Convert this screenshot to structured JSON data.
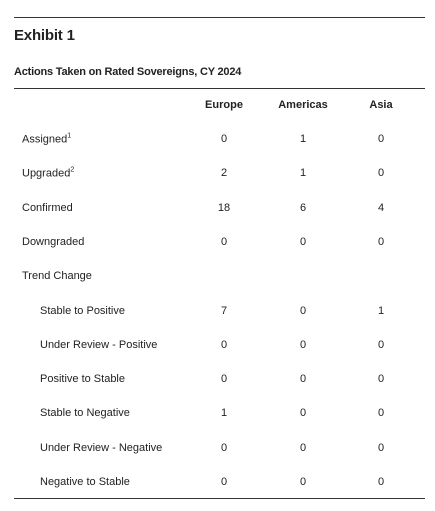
{
  "header": {
    "title": "Exhibit 1",
    "subtitle": "Actions Taken on Rated Sovereigns, CY 2024"
  },
  "table": {
    "columns": [
      "Europe",
      "Americas",
      "Asia"
    ],
    "rows": [
      {
        "label": "Assigned",
        "sup": "1",
        "values": [
          "0",
          "1",
          "0"
        ]
      },
      {
        "label": "Upgraded",
        "sup": "2",
        "values": [
          "2",
          "1",
          "0"
        ]
      },
      {
        "label": "Confirmed",
        "values": [
          "18",
          "6",
          "4"
        ]
      },
      {
        "label": "Downgraded",
        "values": [
          "0",
          "0",
          "0"
        ]
      },
      {
        "label": "Trend Change",
        "sub_rows": [
          {
            "label": "Stable to Positive",
            "values": [
              "7",
              "0",
              "1"
            ]
          },
          {
            "label": "Under Review - Positive",
            "values": [
              "0",
              "0",
              "0"
            ]
          },
          {
            "label": "Positive to Stable",
            "values": [
              "0",
              "0",
              "0"
            ]
          },
          {
            "label": "Stable to Negative",
            "values": [
              "1",
              "0",
              "0"
            ]
          },
          {
            "label": "Under Review - Negative",
            "values": [
              "0",
              "0",
              "0"
            ]
          },
          {
            "label": "Negative to Stable",
            "values": [
              "0",
              "0",
              "0"
            ]
          }
        ]
      }
    ]
  }
}
